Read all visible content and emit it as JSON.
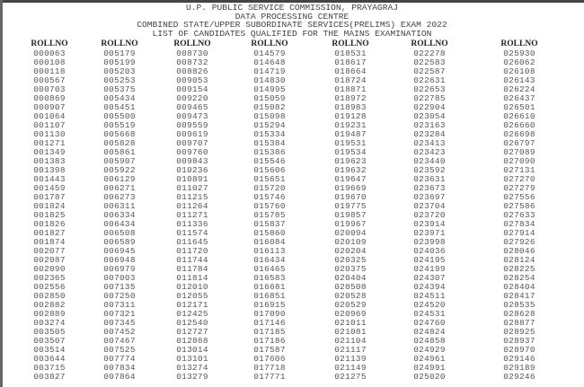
{
  "header": {
    "line1": "U.P. PUBLIC SERVICE COMMISSION, PRAYAGRAJ",
    "line2": "DATA PROCESSING CENTRE",
    "line3": "COMBINED STATE/UPPER SUBORDINATE SERVICES(PRELIMS) EXAM 2022",
    "line4": "LIST OF CANDIDATES QUALIFIED FOR THE MAINS EXAMINATION"
  },
  "column_header": "ROLLNO",
  "columns": [
    [
      "000063",
      "000108",
      "000118",
      "000567",
      "000703",
      "000869",
      "000907",
      "001064",
      "001107",
      "001130",
      "001271",
      "001349",
      "001383",
      "001398",
      "001443",
      "001459",
      "001787",
      "001824",
      "001825",
      "001826",
      "001827",
      "001874",
      "002077",
      "002087",
      "002090",
      "002365",
      "002556",
      "002850",
      "002882",
      "002889",
      "003274",
      "003505",
      "003507",
      "003514",
      "003644",
      "003715",
      "003827"
    ],
    [
      "005179",
      "005199",
      "005203",
      "005253",
      "005375",
      "005434",
      "005451",
      "005500",
      "005519",
      "005668",
      "005828",
      "005861",
      "005907",
      "005922",
      "006129",
      "006271",
      "006273",
      "006311",
      "006334",
      "006434",
      "006508",
      "006589",
      "006945",
      "006948",
      "006979",
      "007003",
      "007135",
      "007250",
      "007311",
      "007321",
      "007345",
      "007452",
      "007467",
      "007525",
      "007774",
      "007834",
      "007864"
    ],
    [
      "008730",
      "008732",
      "008826",
      "009053",
      "009154",
      "009220",
      "009465",
      "009473",
      "009559",
      "009619",
      "009707",
      "009760",
      "009843",
      "010236",
      "010891",
      "011027",
      "011215",
      "011264",
      "011271",
      "011336",
      "011574",
      "011645",
      "011720",
      "011744",
      "011784",
      "011814",
      "012010",
      "012055",
      "012171",
      "012425",
      "012540",
      "012727",
      "012868",
      "013014",
      "013101",
      "013274",
      "013279"
    ],
    [
      "014579",
      "014648",
      "014719",
      "014830",
      "014995",
      "015059",
      "015082",
      "015098",
      "015294",
      "015334",
      "015384",
      "015386",
      "015546",
      "015606",
      "015651",
      "015720",
      "015746",
      "015760",
      "015785",
      "015837",
      "015860",
      "016084",
      "016113",
      "016434",
      "016465",
      "016583",
      "016681",
      "016851",
      "016915",
      "017090",
      "017146",
      "017185",
      "017186",
      "017587",
      "017606",
      "017718",
      "017771"
    ],
    [
      "018531",
      "018617",
      "018664",
      "018724",
      "018871",
      "018972",
      "018983",
      "019128",
      "019231",
      "019487",
      "019531",
      "019534",
      "019623",
      "019632",
      "019647",
      "019669",
      "019670",
      "019775",
      "019857",
      "019967",
      "020094",
      "020109",
      "020204",
      "020325",
      "020375",
      "020404",
      "020508",
      "020528",
      "020529",
      "020969",
      "021011",
      "021081",
      "021104",
      "021117",
      "021139",
      "021149",
      "021275"
    ],
    [
      "022278",
      "022583",
      "022587",
      "022631",
      "022653",
      "022785",
      "022904",
      "023054",
      "023163",
      "023284",
      "023413",
      "023423",
      "023440",
      "023592",
      "023631",
      "023673",
      "023697",
      "023704",
      "023720",
      "023914",
      "023971",
      "023998",
      "024036",
      "024195",
      "024199",
      "024307",
      "024394",
      "024511",
      "024520",
      "024531",
      "024760",
      "024824",
      "024858",
      "024929",
      "024961",
      "024991",
      "025020"
    ],
    [
      "025930",
      "026062",
      "026108",
      "026143",
      "026224",
      "026437",
      "026501",
      "026610",
      "026660",
      "026698",
      "026797",
      "027089",
      "027090",
      "027131",
      "027270",
      "027279",
      "027556",
      "027586",
      "027633",
      "027834",
      "027914",
      "027926",
      "028046",
      "028124",
      "028225",
      "028254",
      "028404",
      "028417",
      "028535",
      "028628",
      "028877",
      "028925",
      "028937",
      "028970",
      "029146",
      "029189",
      "029246"
    ]
  ]
}
